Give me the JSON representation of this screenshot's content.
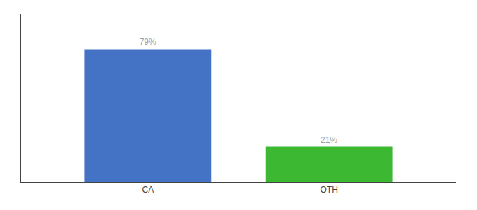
{
  "chart_data": {
    "type": "bar",
    "categories": [
      "CA",
      "OTH"
    ],
    "values": [
      79,
      21
    ],
    "value_labels": [
      "79%",
      "21%"
    ],
    "colors": [
      "#4472c4",
      "#3cb832"
    ],
    "ylim": [
      0,
      100
    ],
    "yticks": [],
    "tick_labels": "x",
    "grid": false,
    "data_labels": true
  }
}
